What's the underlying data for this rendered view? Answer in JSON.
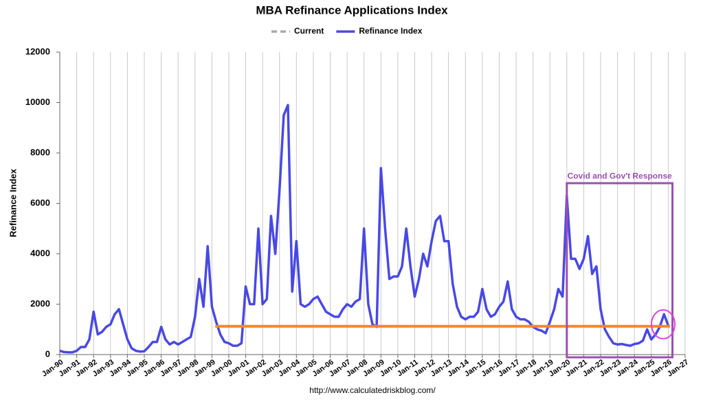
{
  "chart_data": {
    "type": "line",
    "title": "MBA Refinance Applications Index",
    "y_label": "Refinance Index",
    "source": "http://www.calculatedriskblog.com/",
    "xlim": [
      1990,
      2027
    ],
    "ylim": [
      0,
      12000
    ],
    "yticks": [
      0,
      2000,
      4000,
      6000,
      8000,
      10000,
      12000
    ],
    "grid": "x",
    "xticks": [
      {
        "value": 1990,
        "label": "Jan-90"
      },
      {
        "value": 1991,
        "label": "Jan-91"
      },
      {
        "value": 1992,
        "label": "Jan-92"
      },
      {
        "value": 1993,
        "label": "Jan-93"
      },
      {
        "value": 1994,
        "label": "Jan-94"
      },
      {
        "value": 1995,
        "label": "Jan-95"
      },
      {
        "value": 1996,
        "label": "Jan-96"
      },
      {
        "value": 1997,
        "label": "Jan-97"
      },
      {
        "value": 1998,
        "label": "Jan-98"
      },
      {
        "value": 1999,
        "label": "Jan-99"
      },
      {
        "value": 2000,
        "label": "Jan-00"
      },
      {
        "value": 2001,
        "label": "Jan-01"
      },
      {
        "value": 2002,
        "label": "Jan-02"
      },
      {
        "value": 2003,
        "label": "Jan-03"
      },
      {
        "value": 2004,
        "label": "Jan-04"
      },
      {
        "value": 2005,
        "label": "Jan-05"
      },
      {
        "value": 2006,
        "label": "Jan-06"
      },
      {
        "value": 2007,
        "label": "Jan-07"
      },
      {
        "value": 2008,
        "label": "Jan-08"
      },
      {
        "value": 2009,
        "label": "Jan-09"
      },
      {
        "value": 2010,
        "label": "Jan-10"
      },
      {
        "value": 2011,
        "label": "Jan-11"
      },
      {
        "value": 2012,
        "label": "Jan-12"
      },
      {
        "value": 2013,
        "label": "Jan-13"
      },
      {
        "value": 2014,
        "label": "Jan-14"
      },
      {
        "value": 2015,
        "label": "Jan-15"
      },
      {
        "value": 2016,
        "label": "Jan-16"
      },
      {
        "value": 2017,
        "label": "Jan-17"
      },
      {
        "value": 2018,
        "label": "Jan-18"
      },
      {
        "value": 2019,
        "label": "Jan-19"
      },
      {
        "value": 2020,
        "label": "Jan-20"
      },
      {
        "value": 2021,
        "label": "Jan-21"
      },
      {
        "value": 2022,
        "label": "Jan-22"
      },
      {
        "value": 2023,
        "label": "Jan-23"
      },
      {
        "value": 2024,
        "label": "Jan-24"
      },
      {
        "value": 2025,
        "label": "Jan-25"
      },
      {
        "value": 2026,
        "label": "Jan-26"
      },
      {
        "value": 2027,
        "label": "Jan-27"
      }
    ],
    "series": [
      {
        "name": "Current",
        "color": "#f5862a",
        "legend_color": "#aaaaaa",
        "x": [
          1999.2,
          2026.1
        ],
        "values": [
          1120,
          1120
        ]
      },
      {
        "name": "Refinance Index",
        "color": "#4848e6",
        "x": [
          1990,
          1990.25,
          1990.5,
          1990.75,
          1991,
          1991.25,
          1991.5,
          1991.75,
          1992,
          1992.25,
          1992.5,
          1992.75,
          1993,
          1993.25,
          1993.5,
          1993.75,
          1994,
          1994.25,
          1994.5,
          1994.75,
          1995,
          1995.25,
          1995.5,
          1995.75,
          1996,
          1996.25,
          1996.5,
          1996.75,
          1997,
          1997.25,
          1997.5,
          1997.75,
          1998,
          1998.25,
          1998.5,
          1998.75,
          1999,
          1999.25,
          1999.5,
          1999.75,
          2000,
          2000.25,
          2000.5,
          2000.75,
          2001,
          2001.25,
          2001.5,
          2001.75,
          2002,
          2002.25,
          2002.5,
          2002.75,
          2003,
          2003.25,
          2003.5,
          2003.75,
          2004,
          2004.25,
          2004.5,
          2004.75,
          2005,
          2005.25,
          2005.5,
          2005.75,
          2006,
          2006.25,
          2006.5,
          2006.75,
          2007,
          2007.25,
          2007.5,
          2007.75,
          2008,
          2008.25,
          2008.5,
          2008.75,
          2009,
          2009.25,
          2009.5,
          2009.75,
          2010,
          2010.25,
          2010.5,
          2010.75,
          2011,
          2011.25,
          2011.5,
          2011.75,
          2012,
          2012.25,
          2012.5,
          2012.75,
          2013,
          2013.25,
          2013.5,
          2013.75,
          2014,
          2014.25,
          2014.5,
          2014.75,
          2015,
          2015.25,
          2015.5,
          2015.75,
          2016,
          2016.25,
          2016.5,
          2016.75,
          2017,
          2017.25,
          2017.5,
          2017.75,
          2018,
          2018.25,
          2018.5,
          2018.75,
          2019,
          2019.25,
          2019.5,
          2019.75,
          2020,
          2020.25,
          2020.5,
          2020.75,
          2021,
          2021.25,
          2021.5,
          2021.75,
          2022,
          2022.25,
          2022.5,
          2022.75,
          2023,
          2023.25,
          2023.5,
          2023.75,
          2024,
          2024.25,
          2024.5,
          2024.75,
          2025,
          2025.25,
          2025.5,
          2025.75,
          2026
        ],
        "values": [
          150,
          100,
          90,
          90,
          150,
          300,
          300,
          600,
          1700,
          800,
          900,
          1100,
          1200,
          1600,
          1800,
          1200,
          600,
          250,
          150,
          120,
          130,
          300,
          500,
          500,
          1100,
          600,
          400,
          500,
          400,
          500,
          600,
          700,
          1500,
          3000,
          1900,
          4300,
          1900,
          1300,
          800,
          500,
          450,
          350,
          350,
          450,
          2700,
          2000,
          2000,
          5000,
          2000,
          2200,
          5500,
          4000,
          6500,
          9500,
          9900,
          2500,
          4500,
          2000,
          1900,
          2000,
          2200,
          2300,
          2000,
          1700,
          1600,
          1500,
          1500,
          1800,
          2000,
          1900,
          2100,
          2200,
          5000,
          2000,
          1200,
          1100,
          7400,
          5000,
          3000,
          3100,
          3100,
          3500,
          5000,
          3500,
          2300,
          3000,
          4000,
          3500,
          4500,
          5300,
          5500,
          4500,
          4500,
          2800,
          1900,
          1500,
          1400,
          1500,
          1500,
          1700,
          2600,
          1800,
          1500,
          1600,
          1900,
          2100,
          2900,
          1800,
          1500,
          1400,
          1400,
          1300,
          1100,
          1000,
          950,
          850,
          1300,
          1800,
          2600,
          2300,
          6300,
          3800,
          3800,
          3400,
          3800,
          4700,
          3200,
          3500,
          1800,
          1000,
          700,
          450,
          400,
          420,
          380,
          350,
          420,
          450,
          550,
          1000,
          600,
          800,
          1100,
          1600,
          1150
        ]
      }
    ],
    "annotation": {
      "text": "Covid and Gov't Response",
      "x": [
        2020,
        2026.25
      ],
      "y": [
        0,
        6800
      ],
      "color": "#9b4fb0"
    },
    "highlight": {
      "x": 2025.7,
      "y": 1200,
      "color": "#e040e0"
    }
  }
}
